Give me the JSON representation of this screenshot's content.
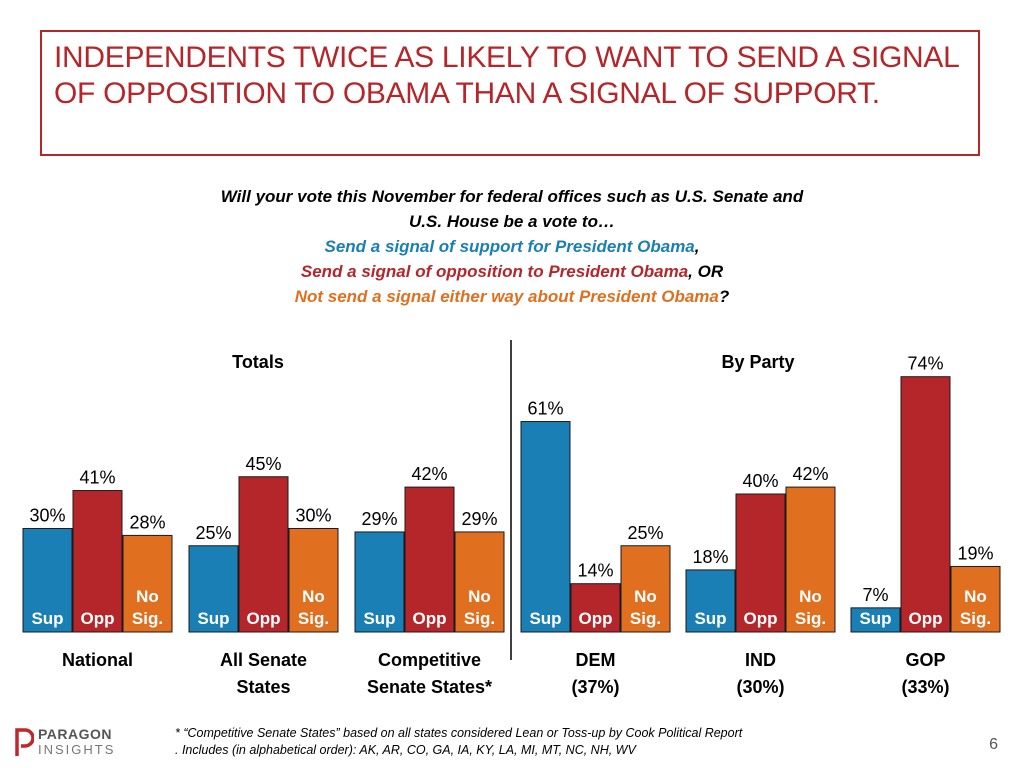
{
  "title": "INDEPENDENTS TWICE AS LIKELY TO WANT TO SEND A SIGNAL OF OPPOSITION TO OBAMA THAN A SIGNAL OF SUPPORT.",
  "question": {
    "line1": "Will your vote this November for federal offices such as U.S. Senate and",
    "line2": "U.S. House be a vote to…",
    "support": "Send a signal of support for President Obama",
    "support_sep": ",",
    "opposition": "Send a signal of opposition to President Obama",
    "opposition_sep": ", OR",
    "none": "Not send a signal either way about President Obama",
    "none_sep": "?"
  },
  "sections": {
    "totals": "Totals",
    "by_party": "By Party"
  },
  "colors": {
    "support": "#1a7fb5",
    "opposition": "#b5262b",
    "no_signal": "#e07020",
    "title": "#b5262b"
  },
  "chart_data": {
    "type": "bar",
    "ylim": [
      0,
      100
    ],
    "series": [
      {
        "key": "support",
        "short_label": "Sup"
      },
      {
        "key": "opposition",
        "short_label": "Opp"
      },
      {
        "key": "no_signal",
        "short_label": "No Sig."
      }
    ],
    "groups": [
      {
        "label": [
          "National"
        ],
        "values": [
          30,
          41,
          28
        ]
      },
      {
        "label": [
          "All Senate",
          "States"
        ],
        "values": [
          25,
          45,
          30
        ]
      },
      {
        "label": [
          "Competitive",
          "Senate States*"
        ],
        "values": [
          29,
          42,
          29
        ]
      },
      {
        "label": [
          "DEM",
          "(37%)"
        ],
        "values": [
          61,
          14,
          25
        ]
      },
      {
        "label": [
          "IND",
          "(30%)"
        ],
        "values": [
          18,
          40,
          42
        ]
      },
      {
        "label": [
          "GOP",
          "(33%)"
        ],
        "values": [
          7,
          74,
          19
        ]
      }
    ]
  },
  "footnote": {
    "line1": "* “Competitive Senate States” based on all states considered Lean or Toss-up by Cook Political Report",
    "line2": ". Includes (in alphabetical order): AK, AR, CO, GA, IA, KY, LA, MI, MT, NC, NH, WV"
  },
  "logo": {
    "line1": "PARAGON",
    "line2": "INSIGHTS",
    "icon": "paragon-p-icon"
  },
  "page_number": "6"
}
